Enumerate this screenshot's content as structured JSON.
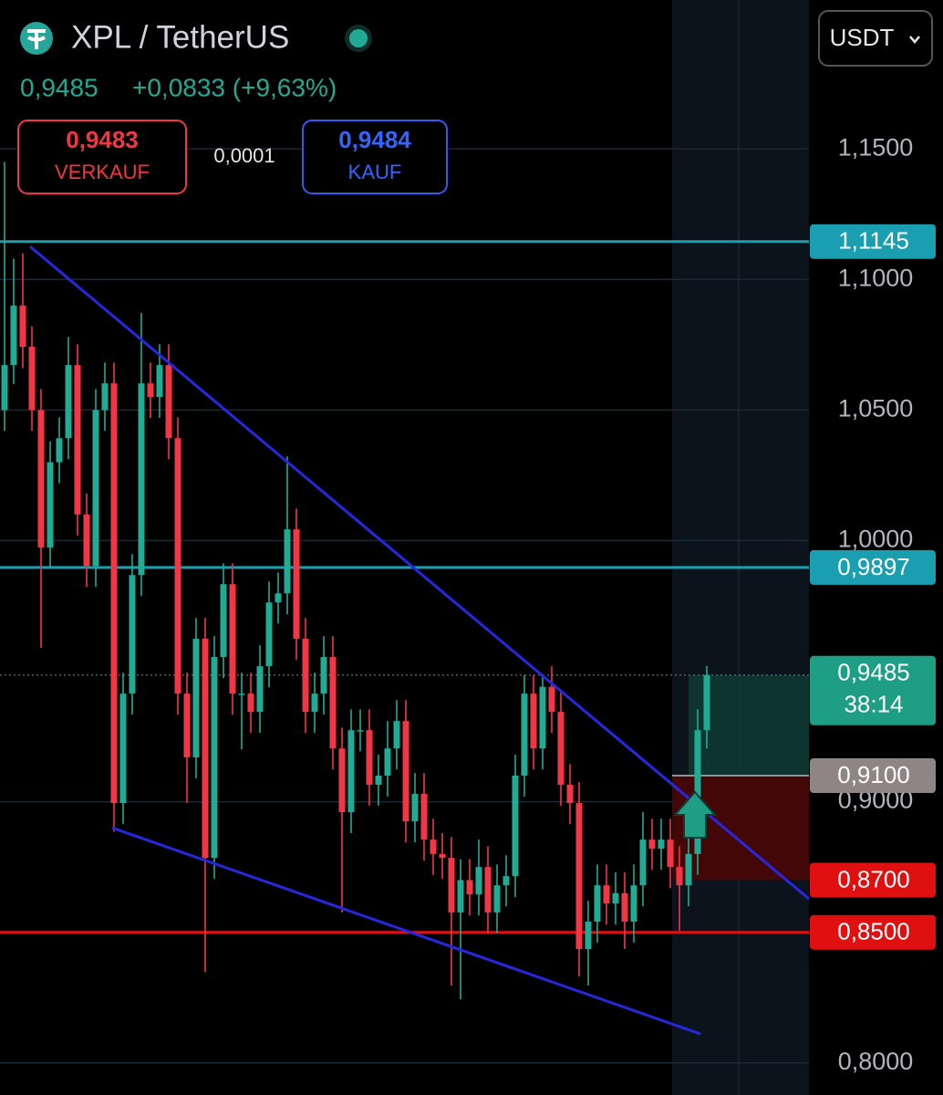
{
  "header": {
    "pair": "XPL / TetherUS",
    "last": "0,9485",
    "change": "+0,0833 (+9,63%)",
    "sell_price": "0,9483",
    "sell_label": "VERKAUF",
    "spread": "0,0001",
    "buy_price": "0,9484",
    "buy_label": "KAUF",
    "currency": "USDT"
  },
  "chart_data": {
    "type": "candlestick",
    "open": [
      1.05,
      1.0672,
      1.09,
      1.0742,
      1.05,
      0.9973,
      1.03,
      1.0392,
      1.0672,
      1.01,
      0.9903,
      1.05,
      1.0602,
      0.8995,
      0.9414,
      0.9868,
      1.0602,
      1.055,
      1.0672,
      1.0392,
      0.9414,
      0.917,
      0.9624,
      0.8785,
      0.9554,
      0.9833,
      0.9414,
      0.9414,
      0.9344,
      0.9519,
      0.9763,
      0.9798,
      1.0043,
      0.9624,
      0.9344,
      0.9414,
      0.9554,
      0.9204,
      0.896,
      0.9274,
      0.9274,
      0.9065,
      0.91,
      0.9204,
      0.9309,
      0.8925,
      0.903,
      0.8855,
      0.88,
      0.8785,
      0.8576,
      0.87,
      0.8645,
      0.875,
      0.8576,
      0.868,
      0.8715,
      0.91,
      0.9414,
      0.9204,
      0.944,
      0.9344,
      0.9065,
      0.8995,
      0.8436,
      0.8541,
      0.868,
      0.861,
      0.865,
      0.8541,
      0.868,
      0.8855,
      0.882,
      0.8855,
      0.875,
      0.868,
      0.88,
      0.9274
    ],
    "high": [
      1.145,
      1.108,
      1.11,
      1.082,
      1.058,
      1.038,
      1.0472,
      1.078,
      1.0752,
      1.018,
      1.058,
      1.0682,
      1.0682,
      0.9494,
      0.9948,
      1.0872,
      1.0682,
      1.0752,
      1.0752,
      1.0472,
      0.9494,
      0.9704,
      0.9704,
      0.9634,
      0.9913,
      0.9913,
      0.9494,
      0.9494,
      0.9599,
      0.9843,
      0.9878,
      1.0322,
      1.0123,
      0.9704,
      0.9494,
      0.9634,
      0.9634,
      0.9284,
      0.9354,
      0.9354,
      0.9354,
      0.918,
      0.9309,
      0.9389,
      0.9389,
      0.911,
      0.911,
      0.8935,
      0.888,
      0.8865,
      0.878,
      0.878,
      0.8855,
      0.883,
      0.876,
      0.8795,
      0.918,
      0.9484,
      0.9484,
      0.9484,
      0.9519,
      0.9424,
      0.9145,
      0.9075,
      0.8621,
      0.876,
      0.876,
      0.873,
      0.873,
      0.876,
      0.896,
      0.8935,
      0.8935,
      0.8935,
      0.883,
      0.888,
      0.9354,
      0.952
    ],
    "low": [
      1.042,
      1.06,
      1.066,
      1.042,
      0.9589,
      0.9893,
      1.022,
      1.0312,
      1.002,
      0.9823,
      0.9823,
      1.042,
      0.8885,
      0.8915,
      0.9334,
      0.9788,
      1.047,
      1.047,
      1.0312,
      0.9334,
      0.8995,
      0.909,
      0.8348,
      0.8705,
      0.9474,
      0.9334,
      0.92,
      0.9264,
      0.9264,
      0.9439,
      0.9683,
      0.9718,
      0.9544,
      0.9264,
      0.9264,
      0.9334,
      0.9124,
      0.8576,
      0.888,
      0.9194,
      0.8985,
      0.8985,
      0.902,
      0.9124,
      0.8845,
      0.8845,
      0.8775,
      0.872,
      0.8705,
      0.8296,
      0.8244,
      0.8565,
      0.8565,
      0.8496,
      0.8496,
      0.86,
      0.8635,
      0.902,
      0.9124,
      0.9124,
      0.9264,
      0.8985,
      0.8915,
      0.8331,
      0.8296,
      0.8461,
      0.853,
      0.853,
      0.8436,
      0.8461,
      0.86,
      0.874,
      0.874,
      0.867,
      0.8506,
      0.86,
      0.872,
      0.9204
    ],
    "close": [
      1.0672,
      1.09,
      1.0742,
      1.05,
      0.9973,
      1.03,
      1.0392,
      1.0672,
      1.01,
      0.9903,
      1.05,
      1.0602,
      0.8995,
      0.9414,
      0.9868,
      1.0602,
      1.055,
      1.0672,
      1.0392,
      0.9414,
      0.917,
      0.9624,
      0.8785,
      0.9554,
      0.9833,
      0.9414,
      0.9414,
      0.9344,
      0.9519,
      0.9763,
      0.9798,
      1.0043,
      0.9624,
      0.9344,
      0.9414,
      0.9554,
      0.9204,
      0.896,
      0.9274,
      0.9274,
      0.9065,
      0.91,
      0.9204,
      0.9309,
      0.8925,
      0.903,
      0.8855,
      0.88,
      0.8785,
      0.8576,
      0.87,
      0.8645,
      0.875,
      0.8576,
      0.868,
      0.8715,
      0.91,
      0.9414,
      0.9204,
      0.944,
      0.9344,
      0.9065,
      0.8995,
      0.8436,
      0.8541,
      0.868,
      0.861,
      0.865,
      0.8541,
      0.868,
      0.8855,
      0.882,
      0.8855,
      0.875,
      0.868,
      0.88,
      0.9274,
      0.9485
    ],
    "up_color": "#22ab94",
    "down_color": "#f23645",
    "xlim": [
      -0.5,
      88.2
    ],
    "ylim": [
      0.7877,
      1.207
    ],
    "yticks": [
      {
        "value": 1.15,
        "label": "1,1500"
      },
      {
        "value": 1.1,
        "label": "1,1000"
      },
      {
        "value": 1.05,
        "label": "1,0500"
      },
      {
        "value": 1.0,
        "label": "1,0000"
      },
      {
        "value": 0.9,
        "label": "0,9000"
      },
      {
        "value": 0.8,
        "label": "0,8000"
      }
    ],
    "grid": true,
    "price_lines": [
      {
        "value": 1.1145,
        "label": "1,1145",
        "color": "#1a9fb0"
      },
      {
        "value": 0.9897,
        "label": "0,9897",
        "color": "#1a9fb0"
      },
      {
        "value": 0.85,
        "label": "0,8500",
        "color": "#e01010"
      }
    ],
    "current": {
      "value": 0.9485,
      "label": "0,9485",
      "countdown": "38:14",
      "color": "#1f9e86"
    },
    "position": {
      "start": 73.2,
      "entry": 0.91,
      "entry_label": "0,9100",
      "stop": 0.87,
      "stop_label": "0,8700",
      "target": 0.9485
    },
    "trendlines": [
      {
        "color": "#2727e0",
        "points": [
          [
            2.8,
            1.1126
          ],
          [
            88.2,
            0.8628
          ]
        ]
      },
      {
        "color": "#2727e0",
        "points": [
          [
            11.8,
            0.89
          ],
          [
            76.3,
            0.8111
          ]
        ]
      }
    ]
  }
}
